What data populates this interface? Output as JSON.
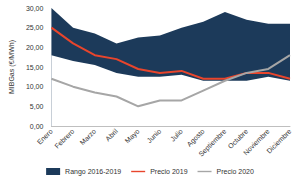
{
  "chart_data": {
    "type": "line",
    "y_label": "MIBGas (€/MWh)",
    "categories": [
      "Enero",
      "Febrero",
      "Marzo",
      "Abril",
      "Mayo",
      "Junio",
      "Julio",
      "Agosto",
      "Septiembre",
      "Octubre",
      "Noviembre",
      "Diciembre"
    ],
    "series": [
      {
        "name": "Rango 2016-2019",
        "type": "range",
        "color": "#1c3a5a",
        "low": [
          18,
          16.5,
          15.5,
          13.5,
          12.5,
          12.5,
          13,
          11.5,
          11.5,
          11.5,
          12.5,
          11.5
        ],
        "high": [
          30,
          25,
          23.5,
          21,
          22.5,
          23,
          25,
          26.5,
          29,
          27,
          26,
          26
        ]
      },
      {
        "name": "Precio 2019",
        "type": "line",
        "color": "#e8452c",
        "values": [
          25,
          21,
          18,
          17,
          14.5,
          13.5,
          14,
          12,
          12,
          13.5,
          13.5,
          12
        ]
      },
      {
        "name": "Precio 2020",
        "type": "line",
        "color": "#a6a6a6",
        "values": [
          12,
          10,
          8.5,
          7.5,
          5,
          6.5,
          6.5,
          9,
          11.5,
          13.5,
          14.5,
          18
        ]
      }
    ],
    "ylim": [
      0,
      30
    ],
    "yticks": [
      {
        "value": 0,
        "label": "0,00"
      },
      {
        "value": 5,
        "label": "5,00"
      },
      {
        "value": 10,
        "label": "10,00"
      },
      {
        "value": 15,
        "label": "15,00"
      },
      {
        "value": 20,
        "label": "20,00"
      },
      {
        "value": 25,
        "label": "25,00"
      },
      {
        "value": 30,
        "label": "30,00"
      }
    ],
    "grid": false,
    "legend": "bottom"
  }
}
